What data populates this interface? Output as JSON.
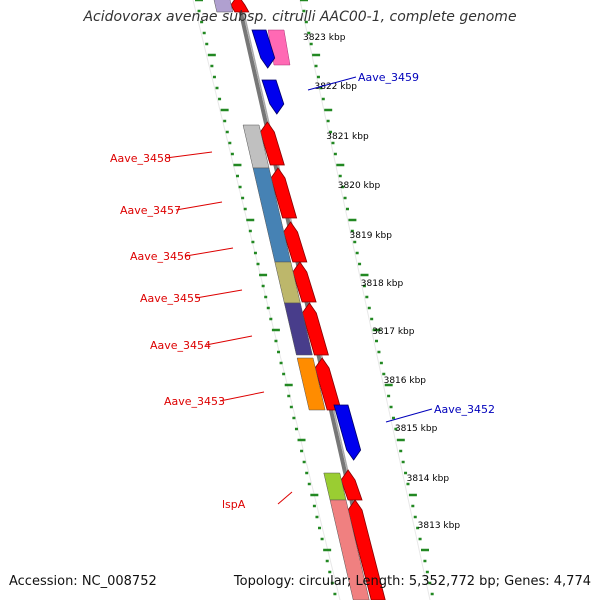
{
  "title": "Acidovorax avenae subsp. citrulli AAC00-1, complete genome",
  "footer": {
    "accession": "Accession: NC_008752",
    "summary": "Topology: circular; Length: 5,352,772 bp; Genes: 4,774"
  },
  "colors": {
    "backbone": "#888888",
    "ticks": "#228822",
    "forward_arrow": "#ff0000",
    "reverse_arrow": "#0000ee",
    "left_label": "#dd0000",
    "right_label": "#0000bb"
  },
  "kbp_labels": [
    "3823 kbp",
    "3822 kbp",
    "3821 kbp",
    "3820 kbp",
    "3819 kbp",
    "3818 kbp",
    "3817 kbp",
    "3816 kbp",
    "3815 kbp",
    "3814 kbp",
    "3813 kbp"
  ],
  "genes_left": [
    "Aave_3458",
    "Aave_3457",
    "Aave_3456",
    "Aave_3455",
    "Aave_3454",
    "Aave_3453",
    "lspA"
  ],
  "genes_right": [
    "Aave_3459",
    "Aave_3452"
  ],
  "cog_colors": [
    "#c0c0c0",
    "#4682b4",
    "#bdb76b",
    "#483d8b",
    "#ff8c00",
    "#9acd32",
    "#f08080",
    "#ff69b4",
    "#b0a0d0"
  ]
}
